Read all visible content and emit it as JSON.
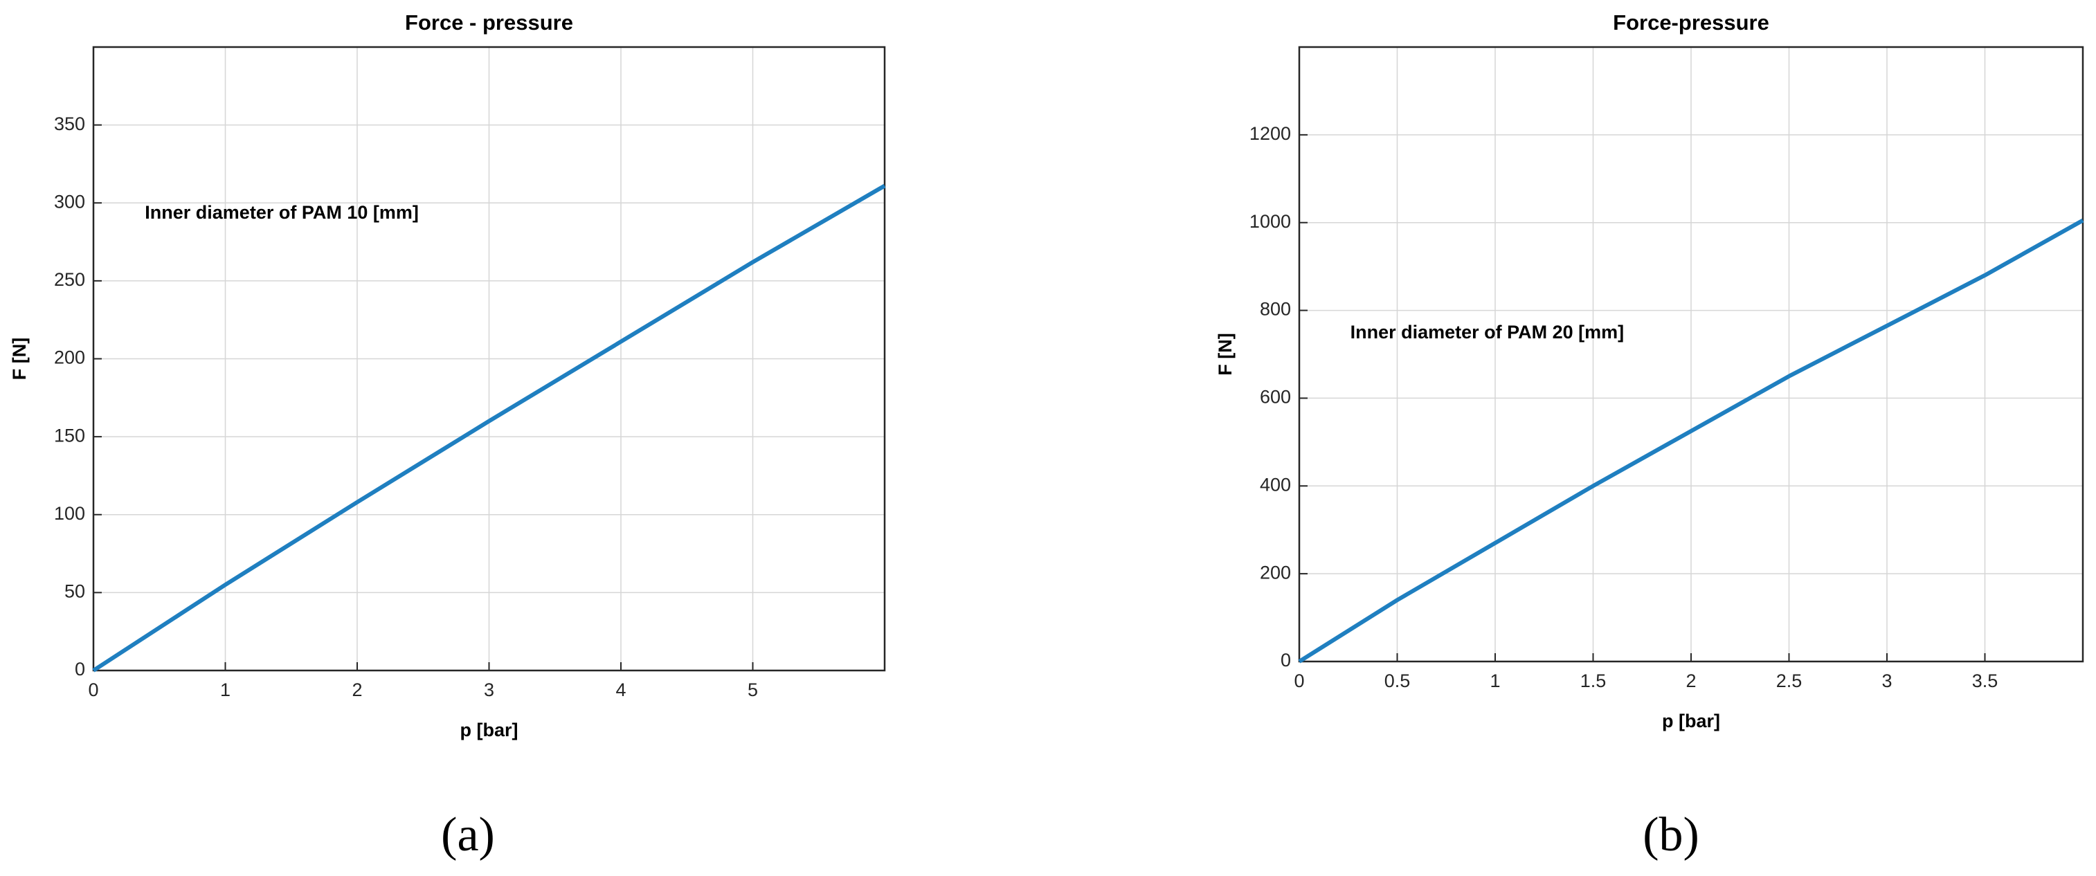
{
  "chart_data": [
    {
      "type": "line",
      "title": "Force - pressure",
      "x_label": "p [bar]",
      "y_label": "F [N]",
      "annotation": "Inner diameter of PAM 10 [mm]",
      "caption": "(a)",
      "x": [
        0,
        1,
        2,
        3,
        4,
        5,
        6
      ],
      "series": [
        {
          "name": "F",
          "color": "#1f7fc0",
          "values": [
            0,
            55,
            108,
            160,
            211,
            262,
            311
          ]
        }
      ],
      "xlim": [
        0,
        6
      ],
      "ylim": [
        0,
        400
      ],
      "xticks": [
        0,
        1,
        2,
        3,
        4,
        5
      ],
      "yticks": [
        0,
        50,
        100,
        150,
        200,
        250,
        300,
        350
      ],
      "grid": true
    },
    {
      "type": "line",
      "title": "Force-pressure",
      "x_label": "p [bar]",
      "y_label": "F [N]",
      "annotation": "Inner diameter of PAM 20 [mm]",
      "caption": "(b)",
      "x": [
        0,
        0.5,
        1,
        1.5,
        2,
        2.5,
        3,
        3.5,
        4
      ],
      "series": [
        {
          "name": "F",
          "color": "#1f7fc0",
          "values": [
            0,
            140,
            270,
            400,
            525,
            650,
            765,
            880,
            1005
          ]
        }
      ],
      "xlim": [
        0,
        4
      ],
      "ylim": [
        0,
        1400
      ],
      "xticks": [
        0,
        0.5,
        1,
        1.5,
        2,
        2.5,
        3,
        3.5
      ],
      "yticks": [
        0,
        200,
        400,
        600,
        800,
        1000,
        1200
      ],
      "grid": true
    }
  ]
}
